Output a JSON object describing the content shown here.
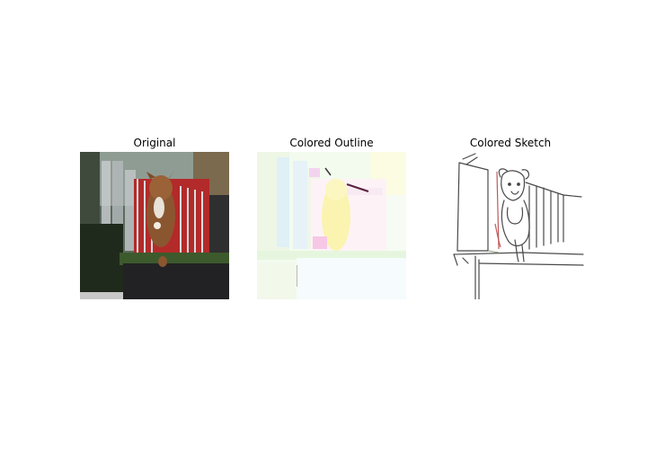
{
  "figure": {
    "panels": [
      {
        "title": "Original",
        "image": "photo of a brown dog leaping over a low wall in front of a building with a red fence"
      },
      {
        "title": "Colored Outline",
        "image": "washed-out pastel colored outline rendering of the same scene"
      },
      {
        "title": "Colored Sketch",
        "image": "line sketch of the same scene with sparse colored strokes"
      }
    ]
  }
}
